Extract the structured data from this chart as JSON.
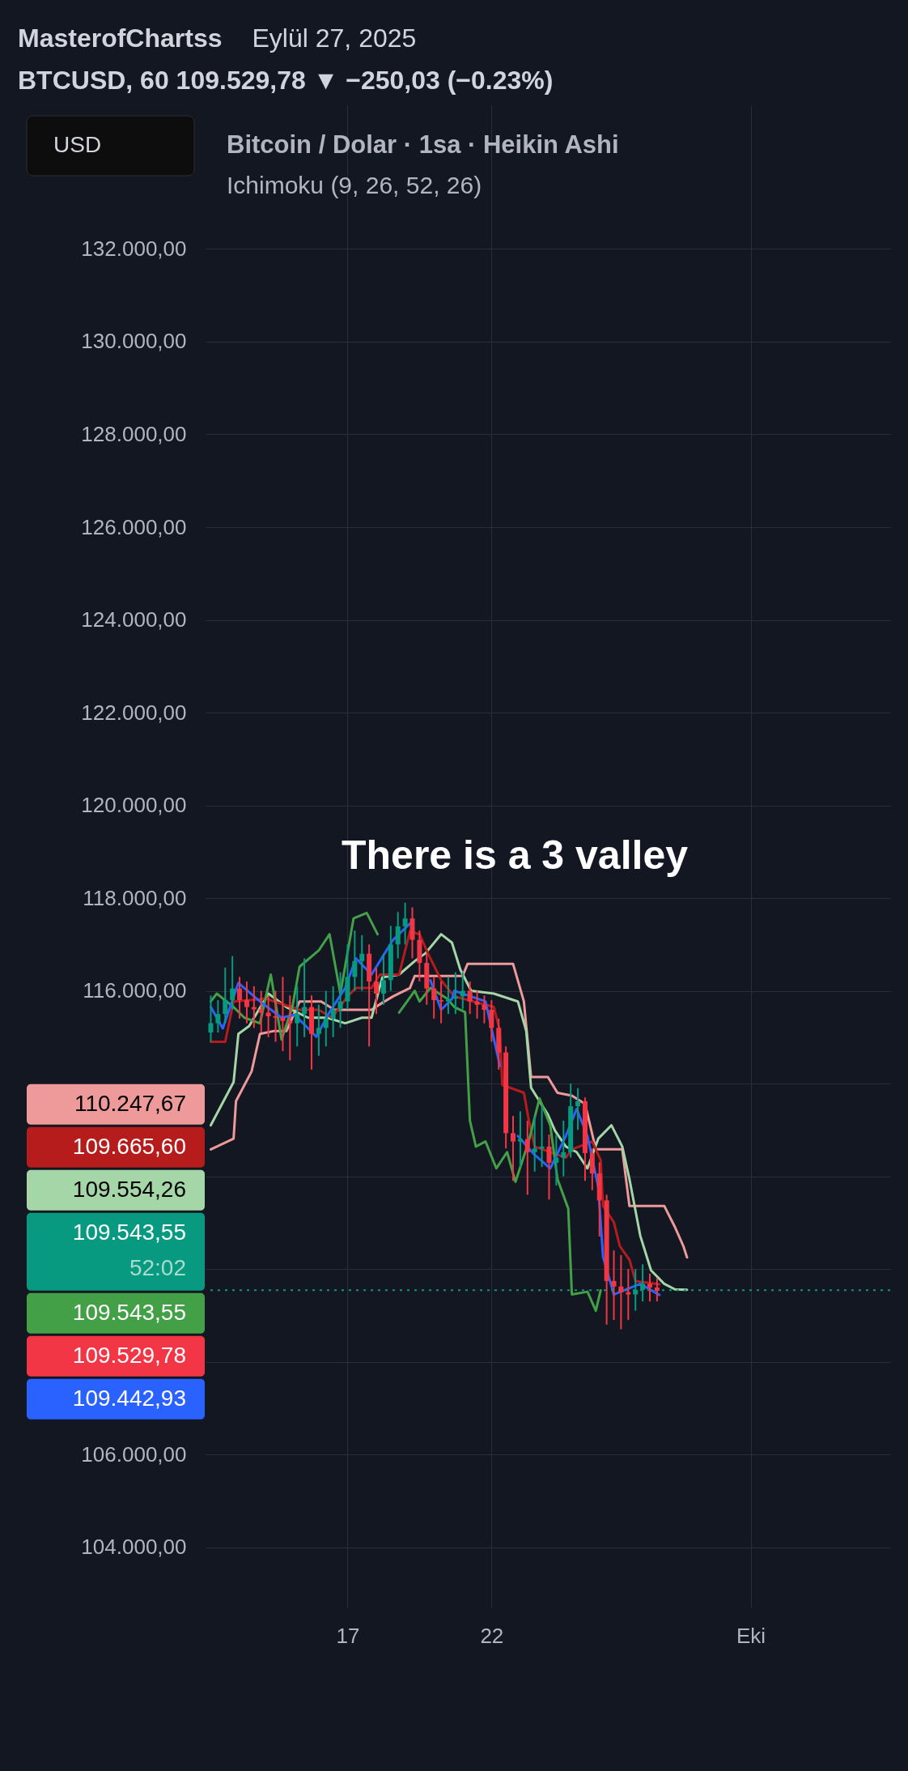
{
  "chart_data": {
    "type": "candlestick",
    "title": "Bitcoin / Dolar · 1sa · Heikin Ashi",
    "subtitle": "Ichimoku (9, 26, 52, 26)",
    "annotations": [
      "MasterofChartss",
      "Eylül 27, 2025",
      "BTCUSD, 60  109.529,78 ▼ −250,03 (−0.23%)",
      "USD",
      "There is a 3 valley",
      "52:02",
      "110.247,67",
      "109.554,26",
      "109.665,60",
      "109.543,55",
      "109.442,93"
    ],
    "x": [
      "2025-09-12T06:00",
      "2025-09-12T12:00",
      "2025-09-12T18:00",
      "2025-09-13T00:00",
      "2025-09-13T06:00",
      "2025-09-13T12:00",
      "2025-09-13T18:00",
      "2025-09-14T00:00",
      "2025-09-14T06:00",
      "2025-09-14T12:00",
      "2025-09-14T18:00",
      "2025-09-15T00:00",
      "2025-09-15T06:00",
      "2025-09-15T12:00",
      "2025-09-15T18:00",
      "2025-09-16T00:00",
      "2025-09-16T06:00",
      "2025-09-16T12:00",
      "2025-09-16T18:00",
      "2025-09-17T00:00",
      "2025-09-17T06:00",
      "2025-09-17T12:00",
      "2025-09-17T18:00",
      "2025-09-18T00:00",
      "2025-09-18T06:00",
      "2025-09-18T12:00",
      "2025-09-18T18:00",
      "2025-09-19T00:00",
      "2025-09-19T06:00",
      "2025-09-19T12:00",
      "2025-09-19T18:00",
      "2025-09-20T00:00",
      "2025-09-20T06:00",
      "2025-09-20T12:00",
      "2025-09-20T18:00",
      "2025-09-21T00:00",
      "2025-09-21T06:00",
      "2025-09-21T12:00",
      "2025-09-21T18:00",
      "2025-09-22T00:00",
      "2025-09-22T06:00",
      "2025-09-22T12:00",
      "2025-09-22T18:00",
      "2025-09-23T00:00",
      "2025-09-23T06:00",
      "2025-09-23T12:00",
      "2025-09-23T18:00",
      "2025-09-24T00:00",
      "2025-09-24T06:00",
      "2025-09-24T12:00",
      "2025-09-24T18:00",
      "2025-09-25T00:00",
      "2025-09-25T06:00",
      "2025-09-25T12:00",
      "2025-09-25T18:00",
      "2025-09-26T00:00",
      "2025-09-26T06:00",
      "2025-09-26T12:00",
      "2025-09-26T18:00",
      "2025-09-27T00:00",
      "2025-09-27T06:00",
      "2025-09-27T12:00",
      "2025-09-27T18:00"
    ],
    "ohlc": [
      [
        115100,
        115900,
        114900,
        115300
      ],
      [
        115300,
        115800,
        115100,
        115500
      ],
      [
        115500,
        116500,
        115300,
        115800
      ],
      [
        115800,
        116750,
        115600,
        116050
      ],
      [
        116050,
        116300,
        115400,
        115800
      ],
      [
        115800,
        116200,
        115300,
        115650
      ],
      [
        115650,
        116100,
        115200,
        115600
      ],
      [
        115600,
        116000,
        115100,
        115530
      ],
      [
        115530,
        115900,
        115000,
        115450
      ],
      [
        115450,
        116000,
        114900,
        115420
      ],
      [
        115420,
        116300,
        114700,
        115350
      ],
      [
        115350,
        115900,
        114500,
        115300
      ],
      [
        115300,
        116100,
        114800,
        115500
      ],
      [
        115500,
        116700,
        115000,
        115650
      ],
      [
        115650,
        115900,
        114300,
        115070
      ],
      [
        115070,
        115700,
        114600,
        115200
      ],
      [
        115200,
        116000,
        114800,
        115400
      ],
      [
        115400,
        116100,
        115000,
        115600
      ],
      [
        115600,
        116400,
        115200,
        115770
      ],
      [
        115770,
        117000,
        115600,
        116300
      ],
      [
        116300,
        117300,
        116000,
        116640
      ],
      [
        116640,
        117200,
        116000,
        116800
      ],
      [
        116800,
        117000,
        114800,
        116200
      ],
      [
        116200,
        116500,
        115500,
        115940
      ],
      [
        115940,
        116800,
        115700,
        116230
      ],
      [
        116230,
        117400,
        116000,
        117000
      ],
      [
        117000,
        117700,
        116700,
        117390
      ],
      [
        117390,
        117900,
        117000,
        117560
      ],
      [
        117560,
        117800,
        116700,
        117100
      ],
      [
        117100,
        117300,
        116200,
        116600
      ],
      [
        116600,
        116800,
        115700,
        116050
      ],
      [
        116050,
        116300,
        115400,
        115800
      ],
      [
        115800,
        116200,
        115300,
        115770
      ],
      [
        115770,
        116300,
        115500,
        115830
      ],
      [
        115830,
        116400,
        115500,
        115880
      ],
      [
        115880,
        116400,
        115600,
        116000
      ],
      [
        116000,
        116200,
        115500,
        115770
      ],
      [
        115770,
        116000,
        115400,
        115700
      ],
      [
        115700,
        115900,
        115300,
        115590
      ],
      [
        115590,
        115800,
        114900,
        115200
      ],
      [
        115200,
        115400,
        114300,
        114670
      ],
      [
        114670,
        114800,
        112600,
        112930
      ],
      [
        112930,
        113300,
        111900,
        112750
      ],
      [
        112750,
        113400,
        112200,
        112800
      ],
      [
        112800,
        113200,
        111600,
        112520
      ],
      [
        112520,
        113300,
        112100,
        112600
      ],
      [
        112600,
        113500,
        112200,
        112640
      ],
      [
        112640,
        112900,
        111500,
        112290
      ],
      [
        112290,
        112900,
        111800,
        112400
      ],
      [
        112400,
        113200,
        112000,
        112520
      ],
      [
        112520,
        114000,
        112400,
        113510
      ],
      [
        113510,
        113900,
        113000,
        113620
      ],
      [
        113620,
        113700,
        111900,
        112500
      ],
      [
        112500,
        112600,
        111700,
        112060
      ],
      [
        112060,
        112300,
        110700,
        111480
      ],
      [
        111480,
        111600,
        108800,
        109740
      ],
      [
        109740,
        110400,
        108900,
        109620
      ],
      [
        109620,
        110300,
        108700,
        109500
      ],
      [
        109500,
        110000,
        108900,
        109450
      ],
      [
        109450,
        110000,
        109100,
        109550
      ],
      [
        109550,
        110100,
        109300,
        109680
      ],
      [
        109680,
        109900,
        109300,
        109600
      ],
      [
        109600,
        109800,
        109300,
        109529.78
      ]
    ],
    "colors": [
      "#089981",
      "#089981",
      "#089981",
      "#089981",
      "#f23645",
      "#f23645",
      "#f23645",
      "#f23645",
      "#f23645",
      "#f23645",
      "#f23645",
      "#f23645",
      "#089981",
      "#089981",
      "#f23645",
      "#089981",
      "#089981",
      "#089981",
      "#089981",
      "#089981",
      "#089981",
      "#089981",
      "#f23645",
      "#f23645",
      "#089981",
      "#089981",
      "#089981",
      "#089981",
      "#f23645",
      "#f23645",
      "#f23645",
      "#f23645",
      "#f23645",
      "#089981",
      "#089981",
      "#089981",
      "#f23645",
      "#f23645",
      "#f23645",
      "#f23645",
      "#f23645",
      "#f23645",
      "#f23645",
      "#089981",
      "#f23645",
      "#089981",
      "#089981",
      "#f23645",
      "#089981",
      "#089981",
      "#089981",
      "#089981",
      "#f23645",
      "#f23645",
      "#f23645",
      "#f23645",
      "#f23645",
      "#f23645",
      "#f23645",
      "#089981",
      "#089981",
      "#f23645",
      "#f23645"
    ],
    "value_labels": [
      null,
      null,
      null,
      null,
      null,
      null,
      null,
      null,
      null,
      null,
      null,
      null,
      null,
      null,
      null,
      null,
      null,
      null,
      null,
      null,
      null,
      null,
      null,
      null,
      null,
      null,
      null,
      null,
      null,
      null,
      null,
      null,
      null,
      null,
      null,
      null,
      null,
      null,
      null,
      null,
      null,
      null,
      null,
      null,
      null,
      null,
      null,
      null,
      null,
      null,
      null,
      null,
      null,
      null,
      null,
      null,
      null,
      null,
      null,
      null,
      null,
      null,
      "109.529,78"
    ],
    "series": [
      {
        "type": "line",
        "color": "#ef9a9a",
        "x": [
          "2025-09-12T06:00",
          "2025-09-13T01:00",
          "2025-09-13T03:00",
          "2025-09-13T16:00",
          "2025-09-13T23:00",
          "2025-09-14T10:00",
          "2025-09-14T21:00",
          "2025-09-15T08:00",
          "2025-09-16T02:00",
          "2025-09-16T13:00",
          "2025-09-17T20:00",
          "2025-09-18T03:00",
          "2025-09-18T14:00",
          "2025-09-19T04:00",
          "2025-09-19T08:00",
          "2025-09-21T00:00",
          "2025-09-21T04:00",
          "2025-09-22T18:00",
          "2025-09-23T03:00",
          "2025-09-23T09:00",
          "2025-09-23T23:00",
          "2025-09-24T07:00",
          "2025-09-24T19:00",
          "2025-09-25T06:00",
          "2025-09-25T15:00",
          "2025-09-26T13:00",
          "2025-09-26T19:00",
          "2025-09-28T00:00",
          "2025-09-28T09:00",
          "2025-09-28T16:00",
          "2025-09-28T19:00"
        ],
        "values": [
          112580,
          112810,
          113620,
          114260,
          115070,
          115130,
          115130,
          115770,
          115770,
          115590,
          115590,
          115710,
          115880,
          116060,
          116320,
          116320,
          116580,
          116580,
          115770,
          114140,
          114140,
          113800,
          113740,
          113560,
          112580,
          112580,
          111360,
          111360,
          110900,
          110490,
          110250
        ]
      },
      {
        "type": "line",
        "color": "#a5d6a7",
        "x": [
          "2025-09-12T06:00",
          "2025-09-13T01:00",
          "2025-09-13T05:00",
          "2025-09-13T14:00",
          "2025-09-14T06:00",
          "2025-09-14T21:00",
          "2025-09-15T15:00",
          "2025-09-16T07:00",
          "2025-09-16T22:00",
          "2025-09-17T12:00",
          "2025-09-17T20:00",
          "2025-09-18T05:00",
          "2025-09-18T19:00",
          "2025-09-19T08:00",
          "2025-09-19T17:00",
          "2025-09-20T06:00",
          "2025-09-20T15:00",
          "2025-09-20T22:00",
          "2025-09-21T07:00",
          "2025-09-22T02:00",
          "2025-09-22T22:00",
          "2025-09-23T05:00",
          "2025-09-23T09:00",
          "2025-09-23T23:00",
          "2025-09-24T05:00",
          "2025-09-24T14:00",
          "2025-09-24T23:00",
          "2025-09-25T08:00",
          "2025-09-25T17:00",
          "2025-09-26T04:00",
          "2025-09-26T13:00",
          "2025-09-26T19:00",
          "2025-09-27T04:00",
          "2025-09-27T13:00",
          "2025-09-28T00:00",
          "2025-09-28T09:00",
          "2025-09-28T19:00"
        ],
        "values": [
          113100,
          114030,
          115070,
          115240,
          115940,
          115650,
          115420,
          115420,
          115300,
          115420,
          115420,
          116290,
          116350,
          116640,
          116810,
          117220,
          117040,
          116460,
          116000,
          115940,
          115770,
          115130,
          113910,
          113330,
          112980,
          112640,
          112520,
          112170,
          112810,
          113100,
          112640,
          111940,
          110720,
          109970,
          109680,
          109560,
          109550
        ]
      },
      {
        "type": "line",
        "color": "#b71c1c",
        "x": [
          "2025-09-12T06:00",
          "2025-09-12T18:00",
          "2025-09-13T01:00",
          "2025-09-14T04:00",
          "2025-09-15T08:00",
          "2025-09-16T00:00",
          "2025-09-16T11:00",
          "2025-09-17T00:00",
          "2025-09-17T07:00",
          "2025-09-17T20:00",
          "2025-09-18T03:00",
          "2025-09-18T19:00",
          "2025-09-19T04:00",
          "2025-09-19T12:00",
          "2025-09-19T19:00",
          "2025-09-20T06:00",
          "2025-09-20T15:00",
          "2025-09-20T17:00",
          "2025-09-22T02:00",
          "2025-09-22T07:00",
          "2025-09-22T09:00",
          "2025-09-23T03:00",
          "2025-09-23T07:00",
          "2025-09-23T12:00",
          "2025-09-24T14:00",
          "2025-09-24T19:00",
          "2025-09-25T12:00",
          "2025-09-25T19:00",
          "2025-09-25T21:00",
          "2025-09-26T06:00",
          "2025-09-26T11:00",
          "2025-09-26T19:00",
          "2025-09-27T00:00",
          "2025-09-27T20:00"
        ],
        "values": [
          114900,
          114900,
          115770,
          115830,
          115590,
          115590,
          115420,
          115880,
          116060,
          116060,
          116350,
          116350,
          117280,
          117220,
          116810,
          116230,
          115940,
          115880,
          115650,
          115130,
          113970,
          113800,
          113220,
          112640,
          112400,
          112580,
          112750,
          112350,
          111360,
          111010,
          110490,
          110200,
          109740,
          109670
        ]
      },
      {
        "type": "line",
        "color": "#43a047",
        "x": [
          "2025-09-12T06:00",
          "2025-09-12T11:00",
          "2025-09-13T01:00",
          "2025-09-13T10:00",
          "2025-09-13T23:00",
          "2025-09-14T08:00",
          "2025-09-14T17:00",
          "2025-09-15T02:00",
          "2025-09-15T08:00",
          "2025-09-16T00:00",
          "2025-09-16T09:00",
          "2025-09-16T18:00",
          "2025-09-17T05:00",
          "2025-09-17T16:00",
          "2025-09-18T01:00",
          "2025-09-18T12:00",
          "2025-09-18T19:00",
          "2025-09-19T08:00",
          "2025-09-19T12:00",
          "2025-09-19T21:00",
          "2025-09-20T11:00",
          "2025-09-20T17:00",
          "2025-09-21T02:00",
          "2025-09-21T06:00",
          "2025-09-21T11:00",
          "2025-09-21T19:00",
          "2025-09-22T04:00",
          "2025-09-22T13:00",
          "2025-09-22T20:00",
          "2025-09-23T07:00",
          "2025-09-23T16:00",
          "2025-09-24T01:00",
          "2025-09-24T07:00",
          "2025-09-24T16:00",
          "2025-09-24T19:00",
          "2025-09-25T08:00",
          "2025-09-25T15:00",
          "2025-09-25T19:00"
        ],
        "values": [
          115770,
          115940,
          115650,
          115420,
          115300,
          116350,
          114950,
          115650,
          116520,
          116870,
          117220,
          115940,
          117560,
          117680,
          117220,
          null,
          115530,
          116000,
          115770,
          116060,
          115830,
          115650,
          115540,
          113200,
          112640,
          112750,
          112170,
          112520,
          111880,
          112750,
          113680,
          113100,
          111940,
          111300,
          109450,
          109510,
          109100,
          109540
        ]
      },
      {
        "type": "line",
        "color": "#2962ff",
        "x": [
          "2025-09-12T06:00",
          "2025-09-12T16:00",
          "2025-09-13T05:00",
          "2025-09-13T23:00",
          "2025-09-14T17:00",
          "2025-09-15T04:00",
          "2025-09-15T22:00",
          "2025-09-16T09:00",
          "2025-09-16T22:00",
          "2025-09-17T07:00",
          "2025-09-17T20:00",
          "2025-09-18T14:00",
          "2025-09-19T04:00",
          "2025-09-19T12:00",
          "2025-09-19T21:00",
          "2025-09-20T06:00",
          "2025-09-20T15:00",
          "2025-09-20T17:00",
          "2025-09-21T19:00",
          "2025-09-22T07:00",
          "2025-09-22T11:00",
          "2025-09-22T22:00",
          "2025-09-23T12:00",
          "2025-09-24T01:00",
          "2025-09-24T14:00",
          "2025-09-24T23:00",
          "2025-09-25T08:00",
          "2025-09-25T17:00",
          "2025-09-25T21:00",
          "2025-09-26T06:00",
          "2025-09-27T04:00",
          "2025-09-27T20:00"
        ],
        "values": [
          115650,
          115190,
          116170,
          115770,
          115420,
          115480,
          115010,
          115540,
          116060,
          116700,
          116350,
          117100,
          117450,
          null,
          116230,
          115590,
          115820,
          116000,
          115770,
          114380,
          null,
          112870,
          112460,
          112170,
          112870,
          113450,
          112870,
          111770,
          110260,
          109450,
          109680,
          109440
        ]
      }
    ],
    "ref_lines": [
      {
        "axis": "y",
        "value": 109543.55,
        "label": "109.543,55",
        "color": "#089981",
        "line_style": "dotted"
      }
    ],
    "xlim": [
      "2025-09-12T05:00",
      "2025-10-05T17:00"
    ],
    "xticks": [
      {
        "value": "2025-09-17T00:00",
        "label": "17"
      },
      {
        "value": "2025-09-22T00:00",
        "label": "22"
      },
      {
        "value": "2025-10-01T00:00",
        "label": "Eki"
      }
    ],
    "ylim": [
      102700,
      135100
    ],
    "yticks": [
      {
        "value": 104000,
        "label": "104.000,00"
      },
      {
        "value": 106000,
        "label": "106.000,00"
      },
      {
        "value": 108000,
        "label": null
      },
      {
        "value": 110000,
        "label": null
      },
      {
        "value": 112000,
        "label": null
      },
      {
        "value": 114000,
        "label": null
      },
      {
        "value": 116000,
        "label": "116.000,00"
      },
      {
        "value": 118000,
        "label": "118.000,00"
      },
      {
        "value": 120000,
        "label": "120.000,00"
      },
      {
        "value": 122000,
        "label": "122.000,00"
      },
      {
        "value": 124000,
        "label": "124.000,00"
      },
      {
        "value": 126000,
        "label": "126.000,00"
      },
      {
        "value": 128000,
        "label": "128.000,00"
      },
      {
        "value": 130000,
        "label": "130.000,00"
      },
      {
        "value": 132000,
        "label": "132.000,00"
      }
    ],
    "grid": true
  }
}
